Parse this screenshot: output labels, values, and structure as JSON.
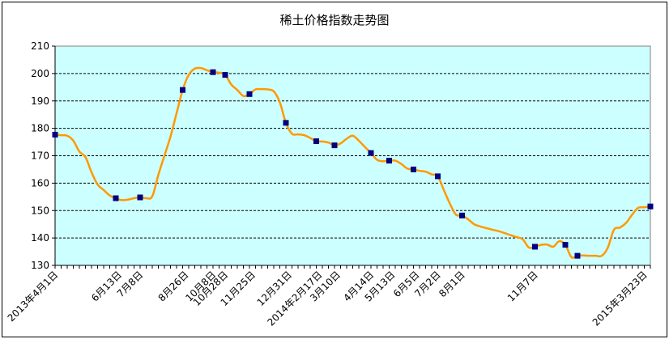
{
  "chart_data": {
    "type": "line",
    "title": "稀土价格指数走势图",
    "xlabel": "",
    "ylabel": "",
    "ylim": [
      130,
      210
    ],
    "yticks": [
      130,
      140,
      150,
      160,
      170,
      180,
      190,
      200,
      210
    ],
    "grid": true,
    "legend": "none",
    "colors": {
      "line": "#ff9900",
      "marker": "#000080",
      "plot_bg": "#ccffff",
      "grid": "#000000"
    },
    "x_tick_labels": [
      "2013年4月1日",
      "6月13日",
      "7月8日",
      "8月26日",
      "10月8日",
      "10月28日",
      "11月25日",
      "12月31日",
      "2014年2月17日",
      "3月10日",
      "4月14日",
      "5月13日",
      "6月5日",
      "7月2日",
      "8月1日",
      "11月7日",
      "2015年3月23日"
    ],
    "x_tick_positions": [
      0,
      10.5,
      14,
      21.5,
      26,
      28,
      32.5,
      38.5,
      43.5,
      46.5,
      52,
      55.5,
      59.5,
      63,
      67,
      79,
      97
    ],
    "series": [
      {
        "values": [
          177.7,
          177.5,
          177.3,
          175.5,
          171.5,
          169.5,
          164.0,
          159.5,
          157.5,
          155.5,
          154.5,
          153.8,
          154.0,
          154.5,
          154.8,
          154.5,
          155.2,
          163.0,
          170.0,
          177.0,
          185.5,
          194.0,
          199.5,
          201.8,
          202.0,
          201.2,
          200.5,
          200.3,
          199.5,
          196.0,
          194.0,
          191.8,
          192.5,
          194.2,
          194.3,
          194.2,
          193.5,
          189.5,
          182.0,
          178.0,
          177.8,
          177.5,
          176.5,
          175.3,
          175.2,
          174.8,
          173.8,
          174.5,
          176.2,
          177.3,
          175.5,
          173.2,
          171.0,
          168.5,
          168.0,
          168.2,
          168.2,
          167.0,
          165.3,
          165.0,
          164.5,
          164.2,
          163.2,
          162.5,
          157.5,
          152.5,
          148.5,
          148.2,
          146.8,
          145.0,
          144.2,
          143.6,
          143.0,
          142.5,
          141.8,
          141.0,
          140.3,
          139.5,
          136.5,
          136.8,
          137.5,
          137.6,
          136.8,
          138.8,
          137.5,
          133.0,
          133.5,
          133.6,
          133.5,
          133.5,
          133.5,
          136.5,
          143.0,
          143.8,
          145.5,
          148.5,
          151.0,
          151.2,
          151.5
        ]
      }
    ],
    "marker_indices": [
      0,
      10,
      14,
      21,
      26,
      28,
      32,
      38,
      43,
      46,
      52,
      55,
      59,
      63,
      67,
      79,
      84,
      86,
      98
    ]
  }
}
